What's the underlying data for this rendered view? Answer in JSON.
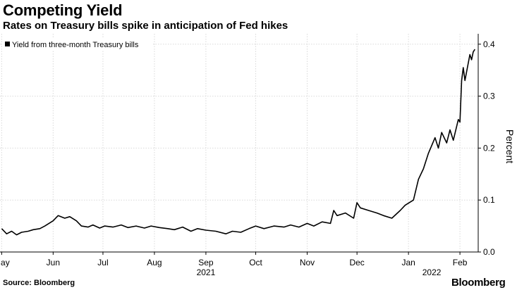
{
  "header": {
    "title": "Competing Yield",
    "subtitle": "Rates on Treasury bills spike in anticipation of Fed hikes"
  },
  "footer": {
    "source": "Source: Bloomberg",
    "brand": "Bloomberg"
  },
  "chart_data": {
    "type": "line",
    "title": "Competing Yield",
    "subtitle": "Rates on Treasury bills spike in anticipation of Fed hikes",
    "ylabel": "Percent",
    "xlabel": "",
    "ylim": [
      0,
      0.42
    ],
    "yticks": [
      0.0,
      0.1,
      0.2,
      0.3,
      0.4
    ],
    "ytick_labels": [
      "0.0",
      "0.1",
      "0.2",
      "0.3",
      "0.4"
    ],
    "xlim": [
      "2021-04-30",
      "2022-02-12"
    ],
    "xticks": [
      {
        "date": "2021-05-01",
        "label": "May"
      },
      {
        "date": "2021-06-01",
        "label": "Jun"
      },
      {
        "date": "2021-07-01",
        "label": "Jul"
      },
      {
        "date": "2021-08-01",
        "label": "Aug"
      },
      {
        "date": "2021-09-01",
        "label": "Sep"
      },
      {
        "date": "2021-10-01",
        "label": "Oct"
      },
      {
        "date": "2021-11-01",
        "label": "Nov"
      },
      {
        "date": "2021-12-01",
        "label": "Dec"
      },
      {
        "date": "2022-01-01",
        "label": "Jan"
      },
      {
        "date": "2022-02-01",
        "label": "Feb"
      }
    ],
    "year_labels": [
      {
        "date": "2021-09-01",
        "label": "2021"
      },
      {
        "date": "2022-01-15",
        "label": "2022"
      }
    ],
    "grid": true,
    "legend": "top-left",
    "colors": {
      "line": "#000000",
      "grid": "#d9d9d9"
    },
    "series": [
      {
        "name": "Yield from three-month Treasury bills",
        "x": [
          "2021-05-01",
          "2021-05-04",
          "2021-05-07",
          "2021-05-10",
          "2021-05-13",
          "2021-05-17",
          "2021-05-20",
          "2021-05-24",
          "2021-05-27",
          "2021-06-01",
          "2021-06-04",
          "2021-06-08",
          "2021-06-11",
          "2021-06-15",
          "2021-06-18",
          "2021-06-22",
          "2021-06-25",
          "2021-06-29",
          "2021-07-02",
          "2021-07-07",
          "2021-07-12",
          "2021-07-16",
          "2021-07-21",
          "2021-07-26",
          "2021-07-30",
          "2021-08-04",
          "2021-08-09",
          "2021-08-13",
          "2021-08-18",
          "2021-08-23",
          "2021-08-27",
          "2021-09-01",
          "2021-09-07",
          "2021-09-13",
          "2021-09-17",
          "2021-09-22",
          "2021-09-27",
          "2021-10-01",
          "2021-10-06",
          "2021-10-12",
          "2021-10-18",
          "2021-10-22",
          "2021-10-27",
          "2021-11-01",
          "2021-11-05",
          "2021-11-10",
          "2021-11-15",
          "2021-11-17",
          "2021-11-19",
          "2021-11-24",
          "2021-11-29",
          "2021-12-01",
          "2021-12-03",
          "2021-12-08",
          "2021-12-13",
          "2021-12-17",
          "2021-12-22",
          "2021-12-27",
          "2021-12-30",
          "2022-01-04",
          "2022-01-07",
          "2022-01-10",
          "2022-01-13",
          "2022-01-17",
          "2022-01-19",
          "2022-01-21",
          "2022-01-24",
          "2022-01-26",
          "2022-01-28",
          "2022-01-31",
          "2022-02-01",
          "2022-02-02",
          "2022-02-03",
          "2022-02-04",
          "2022-02-07",
          "2022-02-08",
          "2022-02-09",
          "2022-02-10"
        ],
        "y": [
          0.045,
          0.035,
          0.04,
          0.033,
          0.038,
          0.04,
          0.043,
          0.045,
          0.05,
          0.06,
          0.07,
          0.065,
          0.068,
          0.06,
          0.05,
          0.048,
          0.052,
          0.046,
          0.05,
          0.048,
          0.052,
          0.047,
          0.05,
          0.046,
          0.05,
          0.047,
          0.045,
          0.043,
          0.048,
          0.04,
          0.045,
          0.042,
          0.04,
          0.035,
          0.04,
          0.038,
          0.045,
          0.05,
          0.045,
          0.05,
          0.048,
          0.052,
          0.048,
          0.055,
          0.05,
          0.058,
          0.055,
          0.08,
          0.07,
          0.075,
          0.065,
          0.095,
          0.085,
          0.08,
          0.075,
          0.07,
          0.065,
          0.08,
          0.09,
          0.1,
          0.14,
          0.16,
          0.19,
          0.22,
          0.2,
          0.23,
          0.21,
          0.235,
          0.215,
          0.255,
          0.25,
          0.33,
          0.355,
          0.33,
          0.38,
          0.37,
          0.385,
          0.39
        ]
      }
    ]
  }
}
